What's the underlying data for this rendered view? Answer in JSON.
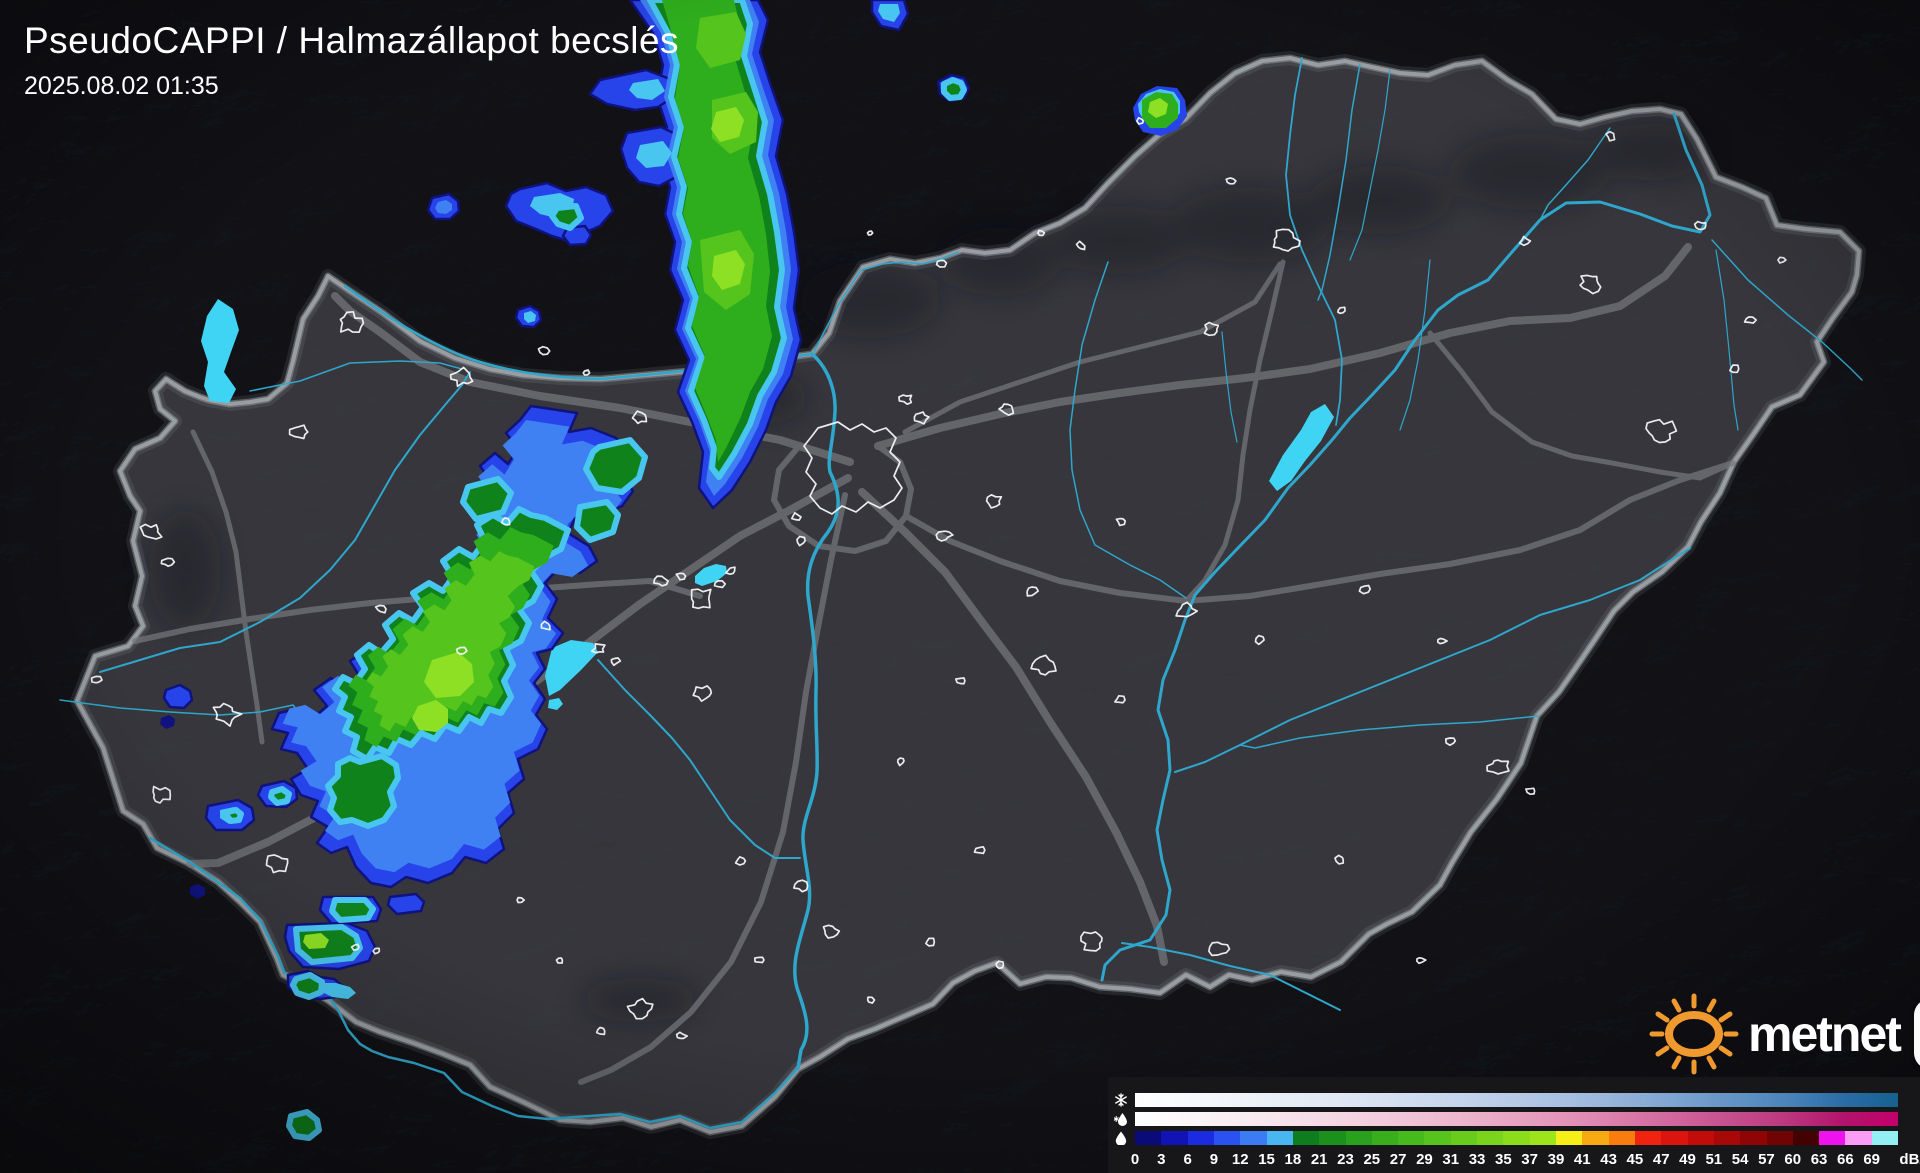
{
  "header": {
    "title": "PseudoCAPPI  / Halmazállapot becslés",
    "timestamp": "2025.08.02 01:35"
  },
  "branding": {
    "logo_text": "metnet",
    "sun_color": "#f0992e",
    "spiral_teal": "#2ba392",
    "spiral_green": "#5cb84a"
  },
  "legend": {
    "unit_label": "dBZ",
    "tick_labels": [
      "0",
      "3",
      "6",
      "9",
      "12",
      "15",
      "18",
      "21",
      "23",
      "25",
      "27",
      "29",
      "31",
      "33",
      "35",
      "37",
      "39",
      "41",
      "43",
      "45",
      "47",
      "49",
      "51",
      "54",
      "57",
      "60",
      "63",
      "66",
      "69"
    ],
    "snow_row": {
      "icon": "snowflake-icon",
      "gradient_stops": [
        [
          "#ffffff",
          0
        ],
        [
          "#eff3f9",
          14
        ],
        [
          "#dde6f3",
          28
        ],
        [
          "#c6d5ec",
          42
        ],
        [
          "#a7bfe0",
          57
        ],
        [
          "#7da3d0",
          71
        ],
        [
          "#4c85bb",
          85
        ],
        [
          "#2a6ca6",
          93
        ],
        [
          "#15618f",
          100
        ]
      ]
    },
    "sleet_row": {
      "icon": "sleet-icon",
      "gradient_stops": [
        [
          "#ffffff",
          0
        ],
        [
          "#f9ecf1",
          14
        ],
        [
          "#f4d4e1",
          28
        ],
        [
          "#edb7cd",
          42
        ],
        [
          "#e292b8",
          57
        ],
        [
          "#d0659c",
          71
        ],
        [
          "#bb397f",
          85
        ],
        [
          "#b2136b",
          93
        ],
        [
          "#c4006d",
          100
        ]
      ]
    },
    "rain_row": {
      "icon": "raindrop-icon",
      "segment_colors": [
        "#0a0a78",
        "#1113b4",
        "#1b2ce0",
        "#2a52f0",
        "#3b7cf4",
        "#49b6f2",
        "#0e7d1d",
        "#1c901c",
        "#29a11c",
        "#38ae1c",
        "#46ba1c",
        "#56c41c",
        "#67cc1b",
        "#79d41b",
        "#8bdc1b",
        "#9ee41c",
        "#f6ee18",
        "#f8aa12",
        "#f87c0e",
        "#f02311",
        "#db140d",
        "#c20c0a",
        "#a80808",
        "#8f0506",
        "#710305",
        "#430102",
        "#ee13ee",
        "#fb9df5",
        "#94eff5"
      ]
    }
  },
  "map": {
    "colors": {
      "outside": "#26262b",
      "inside": "#53535a",
      "border": "#9ba0a5",
      "road": "#77797d",
      "river": "#2fa6cb",
      "lake": "#3fd4f4",
      "settlement": "#f5f6f7",
      "radar_navy": "#10127e",
      "radar_blue": "#2744ea",
      "radar_lightblue": "#3f80f2",
      "radar_cyan": "#49c6f0",
      "radar_green_dark": "#10821c",
      "radar_green": "#2fae1d",
      "radar_green_bright": "#55c41d",
      "radar_lime": "#8ee024"
    }
  }
}
